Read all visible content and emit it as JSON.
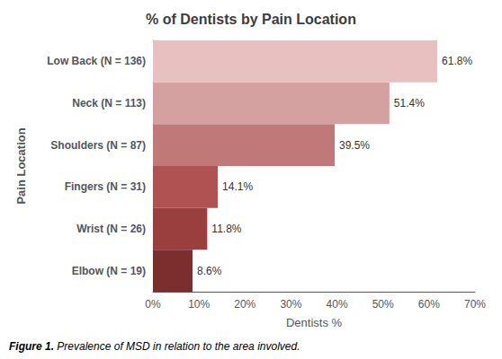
{
  "chart_data": {
    "type": "bar",
    "orientation": "horizontal",
    "title": "% of Dentists by Pain Location",
    "xlabel": "Dentists %",
    "ylabel": "Pain Location",
    "categories": [
      "Elbow (N = 19)",
      "Wrist (N = 26)",
      "Fingers (N = 31)",
      "Shoulders (N = 87)",
      "Neck (N = 113)",
      "Low Back (N = 136)"
    ],
    "values": [
      8.6,
      11.8,
      14.1,
      39.5,
      51.4,
      61.8
    ],
    "value_labels": [
      "8.6%",
      "11.8%",
      "14.1%",
      "39.5%",
      "51.4%",
      "61.8%"
    ],
    "data_labels": true,
    "colors": [
      "#7a2e2e",
      "#9b3e3e",
      "#b05252",
      "#c07878",
      "#d4a0a0",
      "#e8c0c0"
    ],
    "xlim": [
      0,
      70
    ],
    "xticks": [
      {
        "value": 0,
        "label": "0%"
      },
      {
        "value": 10,
        "label": "10%"
      },
      {
        "value": 20,
        "label": "20%"
      },
      {
        "value": 30,
        "label": "30%"
      },
      {
        "value": 40,
        "label": "40%"
      },
      {
        "value": 50,
        "label": "50%"
      },
      {
        "value": 60,
        "label": "60%"
      },
      {
        "value": 70,
        "label": "70%"
      }
    ],
    "grid": false,
    "annotations": [
      "Figure 1.",
      "Prevalence of MSD in relation to the area involved."
    ]
  }
}
